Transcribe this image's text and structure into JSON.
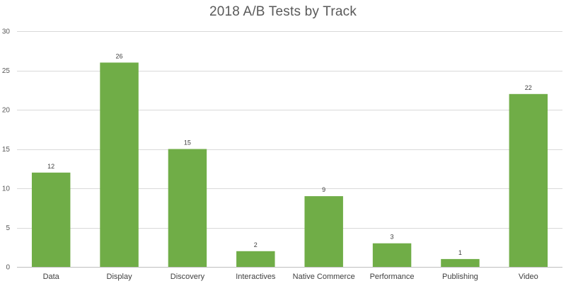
{
  "chart_data": {
    "type": "bar",
    "title": "2018 A/B Tests by Track",
    "xlabel": "",
    "ylabel": "",
    "categories": [
      "Data",
      "Display",
      "Discovery",
      "Interactives",
      "Native Commerce",
      "Performance",
      "Publishing",
      "Video"
    ],
    "values": [
      12,
      26,
      15,
      2,
      9,
      3,
      1,
      22
    ],
    "ylim": [
      0,
      30
    ],
    "yticks": [
      0,
      5,
      10,
      15,
      20,
      25,
      30
    ],
    "grid": true,
    "legend": "none",
    "data_labels": true,
    "colors": {
      "bar": "#70ad47",
      "grid": "#d9d9d9",
      "axis": "#bfbfbf"
    }
  }
}
